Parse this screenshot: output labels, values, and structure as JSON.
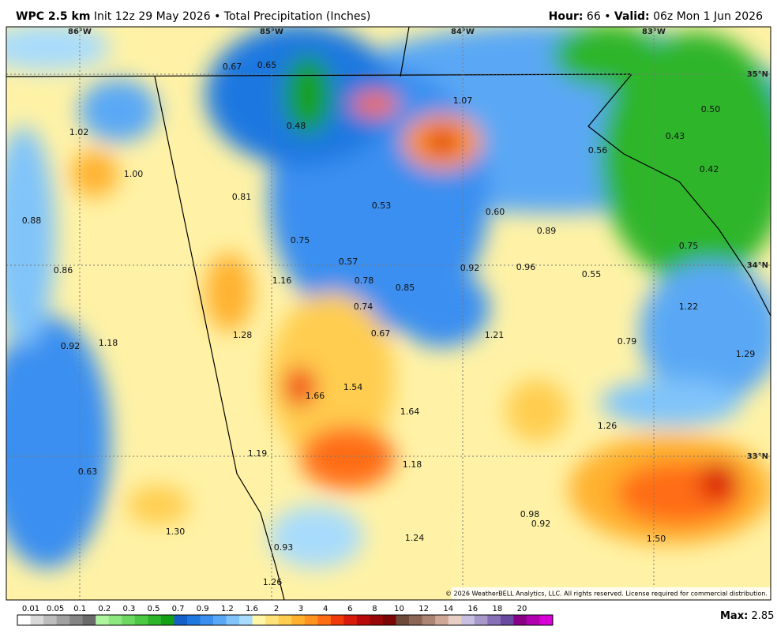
{
  "header": {
    "model": "WPC 2.5 km",
    "init": "Init 12z 29 May 2026",
    "separator": "•",
    "product": "Total Precipitation (Inches)",
    "hour_label": "Hour:",
    "hour": "66",
    "valid_label": "Valid:",
    "valid": "06z Mon 1 Jun 2026"
  },
  "map": {
    "longitudes": [
      "86°W",
      "85°W",
      "84°W",
      "83°W"
    ],
    "latitudes": [
      "35°N",
      "34°N",
      "33°N"
    ],
    "point_labels": [
      "0.67",
      "0.65",
      "1.07",
      "0.48",
      "0.50",
      "1.02",
      "0.56",
      "0.43",
      "1.00",
      "0.42",
      "0.81",
      "0.53",
      "0.60",
      "0.88",
      "0.89",
      "0.75",
      "0.75",
      "0.57",
      "0.86",
      "0.92",
      "0.96",
      "0.55",
      "1.16",
      "0.78",
      "0.85",
      "1.22",
      "0.74",
      "1.28",
      "0.67",
      "1.21",
      "0.79",
      "0.92",
      "1.18",
      "1.29",
      "1.54",
      "1.66",
      "1.64",
      "1.26",
      "1.19",
      "1.18",
      "0.63",
      "0.98",
      "0.92",
      "1.30",
      "1.24",
      "1.50",
      "0.93",
      "1.26"
    ],
    "copyright": "© 2026 WeatherBELL Analytics, LLC. All rights reserved. License required for commercial distribution."
  },
  "legend": {
    "ticks": [
      "0.01",
      "0.05",
      "0.1",
      "0.2",
      "0.3",
      "0.5",
      "0.7",
      "0.9",
      "1.2",
      "1.6",
      "2",
      "3",
      "4",
      "6",
      "8",
      "10",
      "12",
      "14",
      "16",
      "18",
      "20"
    ],
    "colors": [
      "#ffffff",
      "#d9d9d9",
      "#bdbdbd",
      "#a0a0a0",
      "#848484",
      "#6a6a6a",
      "#aef5a0",
      "#8de87f",
      "#6cd860",
      "#4cc843",
      "#2db52a",
      "#14a014",
      "#1560c8",
      "#1e78e0",
      "#3b8ff0",
      "#5aa8f5",
      "#80c4fa",
      "#a8dcfc",
      "#fff6a8",
      "#ffe37a",
      "#ffcd50",
      "#ffb12e",
      "#ff9420",
      "#ff6d12",
      "#f03a0a",
      "#d81a0a",
      "#b80a0a",
      "#960808",
      "#7a0606",
      "#6b4a3a",
      "#8c6555",
      "#ad8575",
      "#cfa898",
      "#e8cfc4",
      "#c8c0e0",
      "#a898cc",
      "#8870b8",
      "#6a4aa0",
      "#880088",
      "#b000b0",
      "#d800d8"
    ],
    "max_label": "Max:",
    "max_value": "2.85"
  }
}
